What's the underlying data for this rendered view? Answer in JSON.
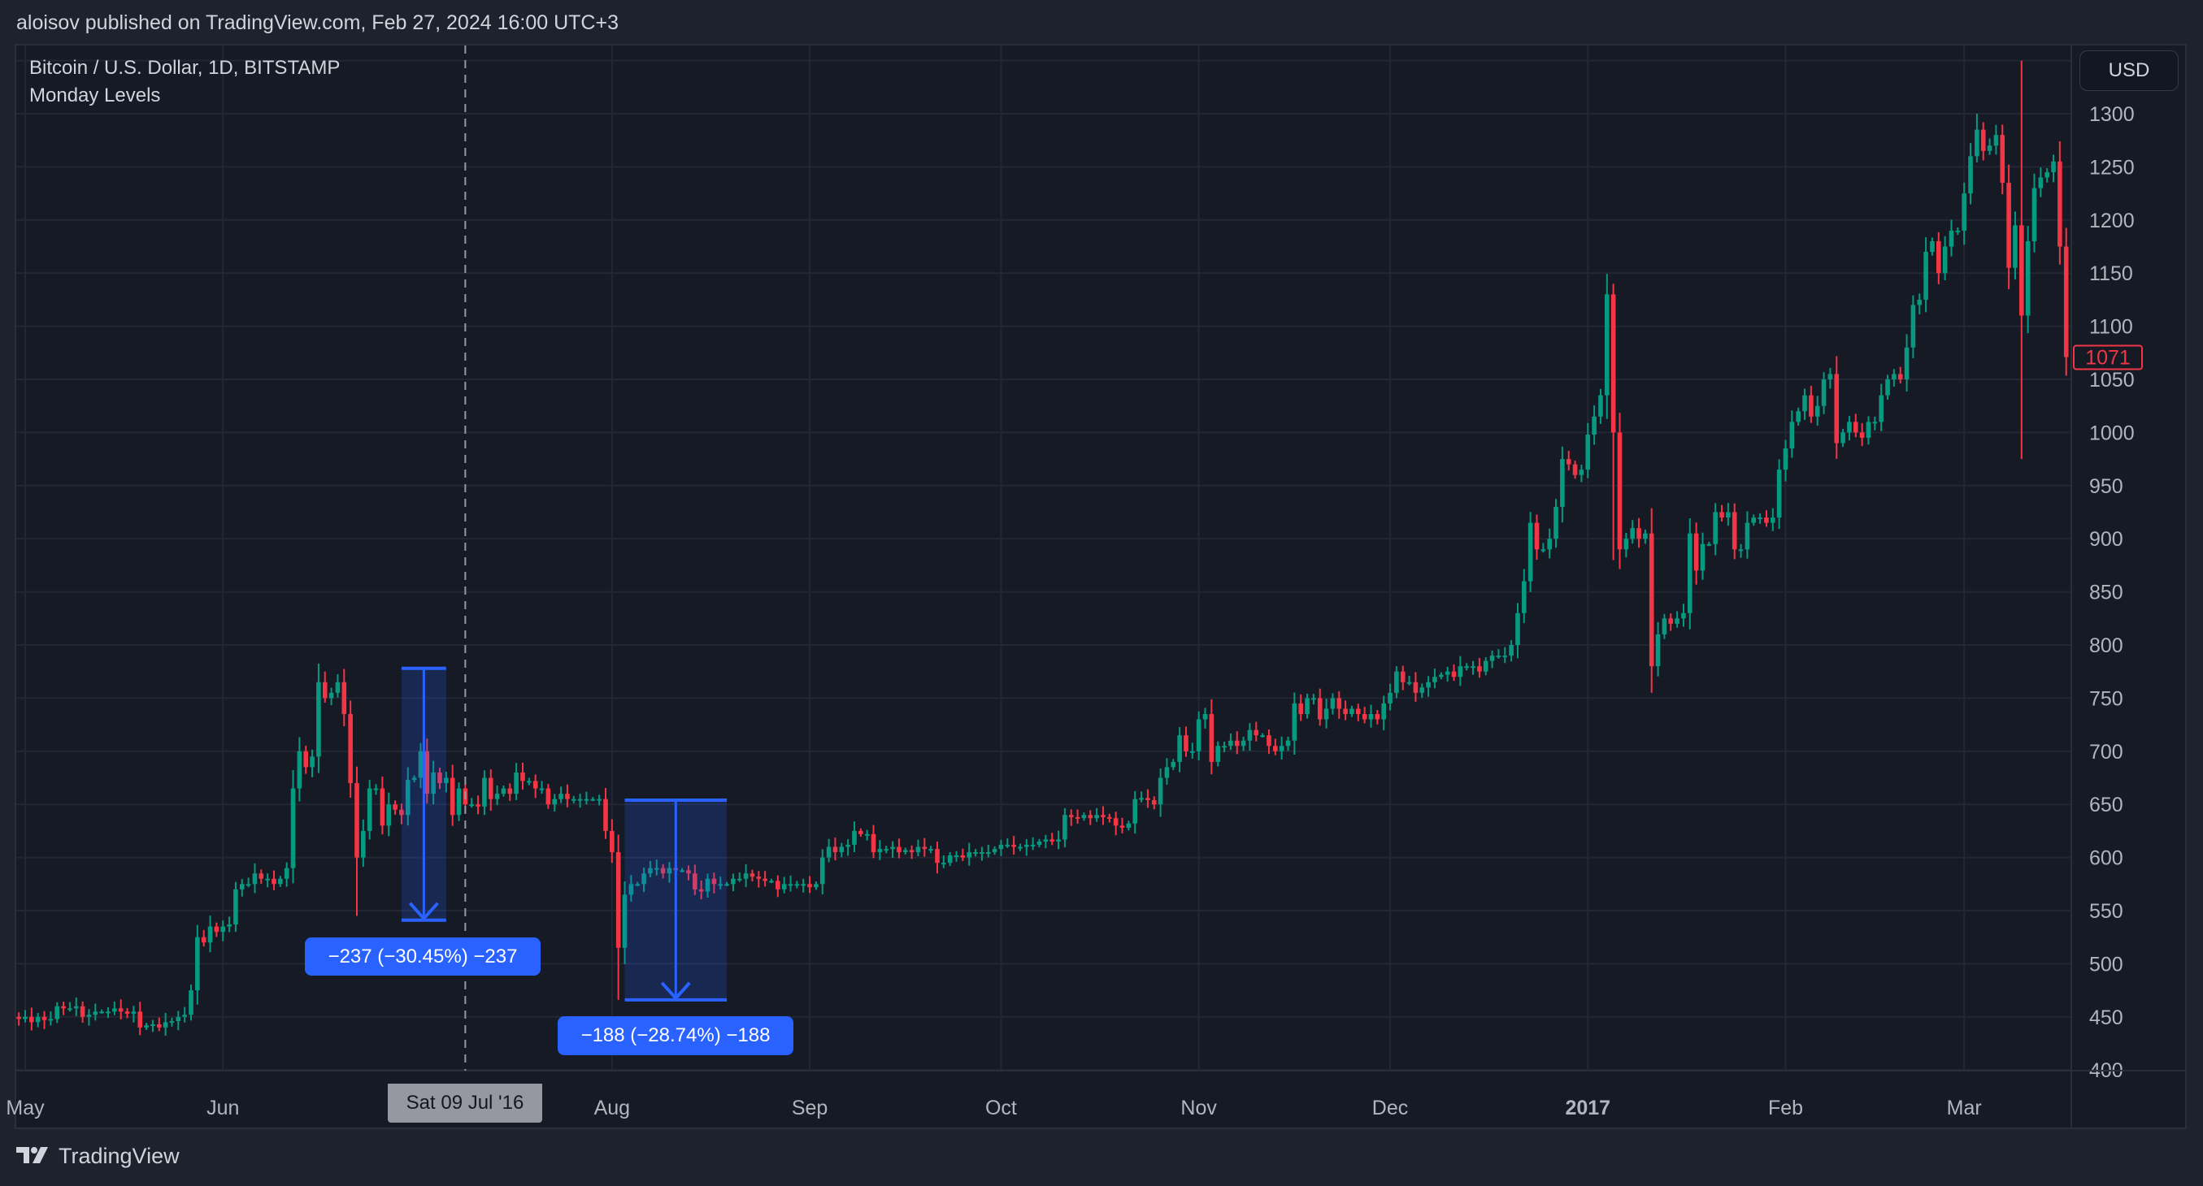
{
  "header": {
    "published": "aloisov published on TradingView.com, Feb 27, 2024 16:00 UTC+3"
  },
  "legend": {
    "symbol": "Bitcoin / U.S. Dollar, 1D, BITSTAMP",
    "indicator": "Monday Levels"
  },
  "currency_button": "USD",
  "crosshair_label": "Sat 09 Jul '16",
  "last_price_label": "1071",
  "footer": {
    "brand": "TradingView"
  },
  "colors": {
    "up": "#089981",
    "down": "#f23645",
    "measure": "#2962ff",
    "background": "#161a25",
    "grid": "#232734"
  },
  "measurements": [
    {
      "label": "−237 (−30.45%) −237",
      "from_price": 778,
      "to_price": 541,
      "start_date": "2016-06-29",
      "end_date": "2016-07-06"
    },
    {
      "label": "−188 (−28.74%) −188",
      "from_price": 654,
      "to_price": 466,
      "start_date": "2016-08-03",
      "end_date": "2016-08-19"
    }
  ],
  "chart_data": {
    "type": "candlestick",
    "title": "Bitcoin / U.S. Dollar, 1D, BITSTAMP",
    "xlabel": "",
    "ylabel": "",
    "ylim": [
      380,
      1350
    ],
    "grid": true,
    "y_ticks": [
      "1300",
      "1250",
      "1200",
      "1150",
      "1100",
      "1050",
      "1000",
      "950",
      "900",
      "850",
      "800",
      "750",
      "700",
      "650",
      "600",
      "550",
      "500",
      "450",
      "400"
    ],
    "x_ticks": [
      {
        "label": "May",
        "date": "2016-05-01"
      },
      {
        "label": "Jun",
        "date": "2016-06-01"
      },
      {
        "label": "Aug",
        "date": "2016-08-01"
      },
      {
        "label": "Sep",
        "date": "2016-09-01"
      },
      {
        "label": "Oct",
        "date": "2016-10-01"
      },
      {
        "label": "Nov",
        "date": "2016-11-01"
      },
      {
        "label": "Dec",
        "date": "2016-12-01"
      },
      {
        "label": "2017",
        "date": "2017-01-01"
      },
      {
        "label": "Feb",
        "date": "2017-02-01"
      },
      {
        "label": "Mar",
        "date": "2017-03-01"
      }
    ],
    "first_date": "2016-04-29",
    "close": [
      450,
      448,
      450,
      445,
      450,
      447,
      448,
      460,
      458,
      458,
      460,
      450,
      452,
      455,
      455,
      455,
      458,
      455,
      453,
      455,
      440,
      442,
      443,
      440,
      445,
      446,
      450,
      452,
      475,
      525,
      520,
      535,
      530,
      535,
      537,
      570,
      575,
      575,
      585,
      580,
      580,
      575,
      580,
      590,
      665,
      700,
      685,
      695,
      765,
      750,
      755,
      765,
      735,
      670,
      600,
      625,
      665,
      665,
      630,
      650,
      645,
      640,
      673,
      675,
      700,
      660,
      680,
      670,
      675,
      640,
      665,
      650,
      650,
      648,
      675,
      655,
      660,
      665,
      660,
      680,
      672,
      672,
      665,
      665,
      650,
      655,
      660,
      655,
      655,
      655,
      655,
      655,
      655,
      625,
      605,
      515,
      565,
      575,
      575,
      585,
      590,
      590,
      585,
      590,
      588,
      588,
      585,
      570,
      568,
      580,
      575,
      575,
      575,
      580,
      580,
      585,
      582,
      580,
      578,
      578,
      570,
      575,
      575,
      575,
      575,
      572,
      575,
      600,
      610,
      605,
      610,
      612,
      625,
      622,
      622,
      605,
      608,
      608,
      610,
      605,
      607,
      605,
      610,
      608,
      608,
      595,
      595,
      602,
      602,
      600,
      605,
      605,
      605,
      605,
      608,
      612,
      612,
      610,
      610,
      612,
      612,
      615,
      617,
      615,
      617,
      640,
      638,
      637,
      640,
      637,
      640,
      638,
      637,
      630,
      628,
      632,
      655,
      656,
      654,
      650,
      675,
      685,
      690,
      715,
      700,
      700,
      730,
      735,
      690,
      705,
      705,
      710,
      705,
      710,
      720,
      715,
      715,
      705,
      700,
      705,
      710,
      745,
      735,
      750,
      750,
      730,
      740,
      750,
      740,
      735,
      740,
      735,
      730,
      735,
      730,
      745,
      755,
      775,
      765,
      765,
      755,
      760,
      765,
      770,
      772,
      775,
      770,
      780,
      780,
      780,
      775,
      785,
      790,
      790,
      790,
      800,
      830,
      860,
      915,
      890,
      890,
      900,
      930,
      975,
      970,
      960,
      965,
      998,
      1015,
      1035,
      1130,
      1000,
      890,
      900,
      910,
      900,
      905,
      780,
      810,
      825,
      820,
      825,
      830,
      905,
      870,
      895,
      895,
      925,
      920,
      925,
      890,
      890,
      915,
      920,
      920,
      915,
      920,
      965,
      985,
      1010,
      1020,
      1035,
      1015,
      1025,
      1050,
      1055,
      990,
      1000,
      1010,
      1000,
      995,
      1010,
      1010,
      1035,
      1050,
      1055,
      1050,
      1080,
      1120,
      1125,
      1170,
      1180,
      1150,
      1175,
      1190,
      1190,
      1225,
      1260,
      1285,
      1265,
      1270,
      1280,
      1235,
      1155,
      1195,
      1110,
      1180,
      1230,
      1240,
      1245,
      1255,
      1175,
      1071
    ],
    "notable_wicks": [
      {
        "date": "2016-06-17",
        "high": 775
      },
      {
        "date": "2016-06-22",
        "low": 545
      },
      {
        "date": "2016-08-02",
        "low": 466
      },
      {
        "date": "2017-01-05",
        "high": 1140,
        "low": 880
      },
      {
        "date": "2017-01-11",
        "low": 755
      },
      {
        "date": "2017-03-03",
        "high": 1300
      },
      {
        "date": "2017-03-10",
        "high": 1350,
        "low": 975
      }
    ]
  }
}
